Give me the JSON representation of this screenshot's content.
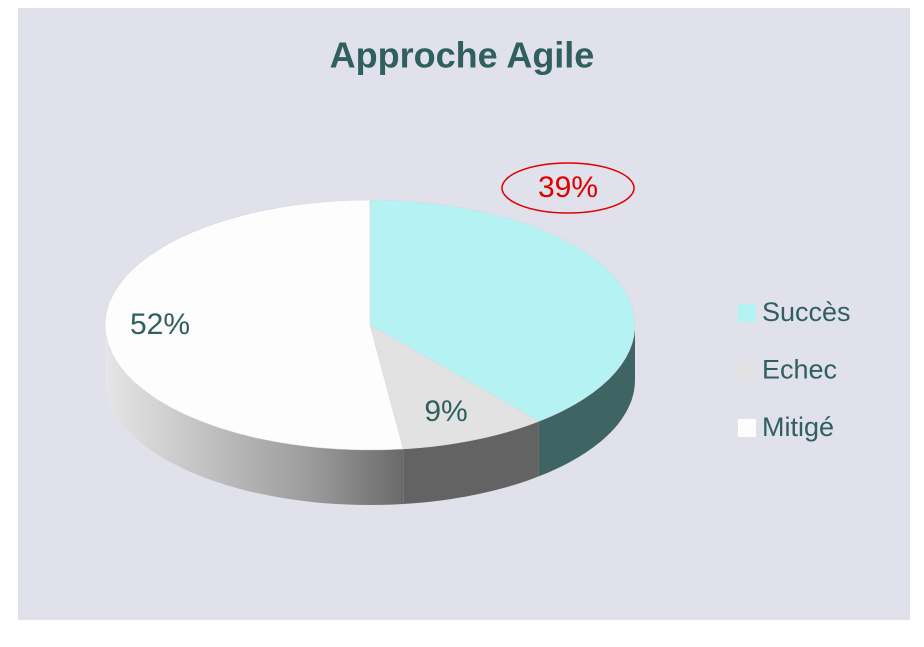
{
  "chart_data": {
    "type": "pie3d",
    "title": "Approche Agile",
    "categories": [
      "Succès",
      "Echec",
      "Mitigé"
    ],
    "values": [
      39,
      9,
      52
    ],
    "value_labels": [
      "39%",
      "9%",
      "52%"
    ],
    "colors": [
      "#b4f2f4",
      "#e2e2e2",
      "#fdfdfd"
    ],
    "side_colors": [
      "#3e6464",
      "#636363",
      "#b8b8b8"
    ],
    "legend": "right"
  }
}
